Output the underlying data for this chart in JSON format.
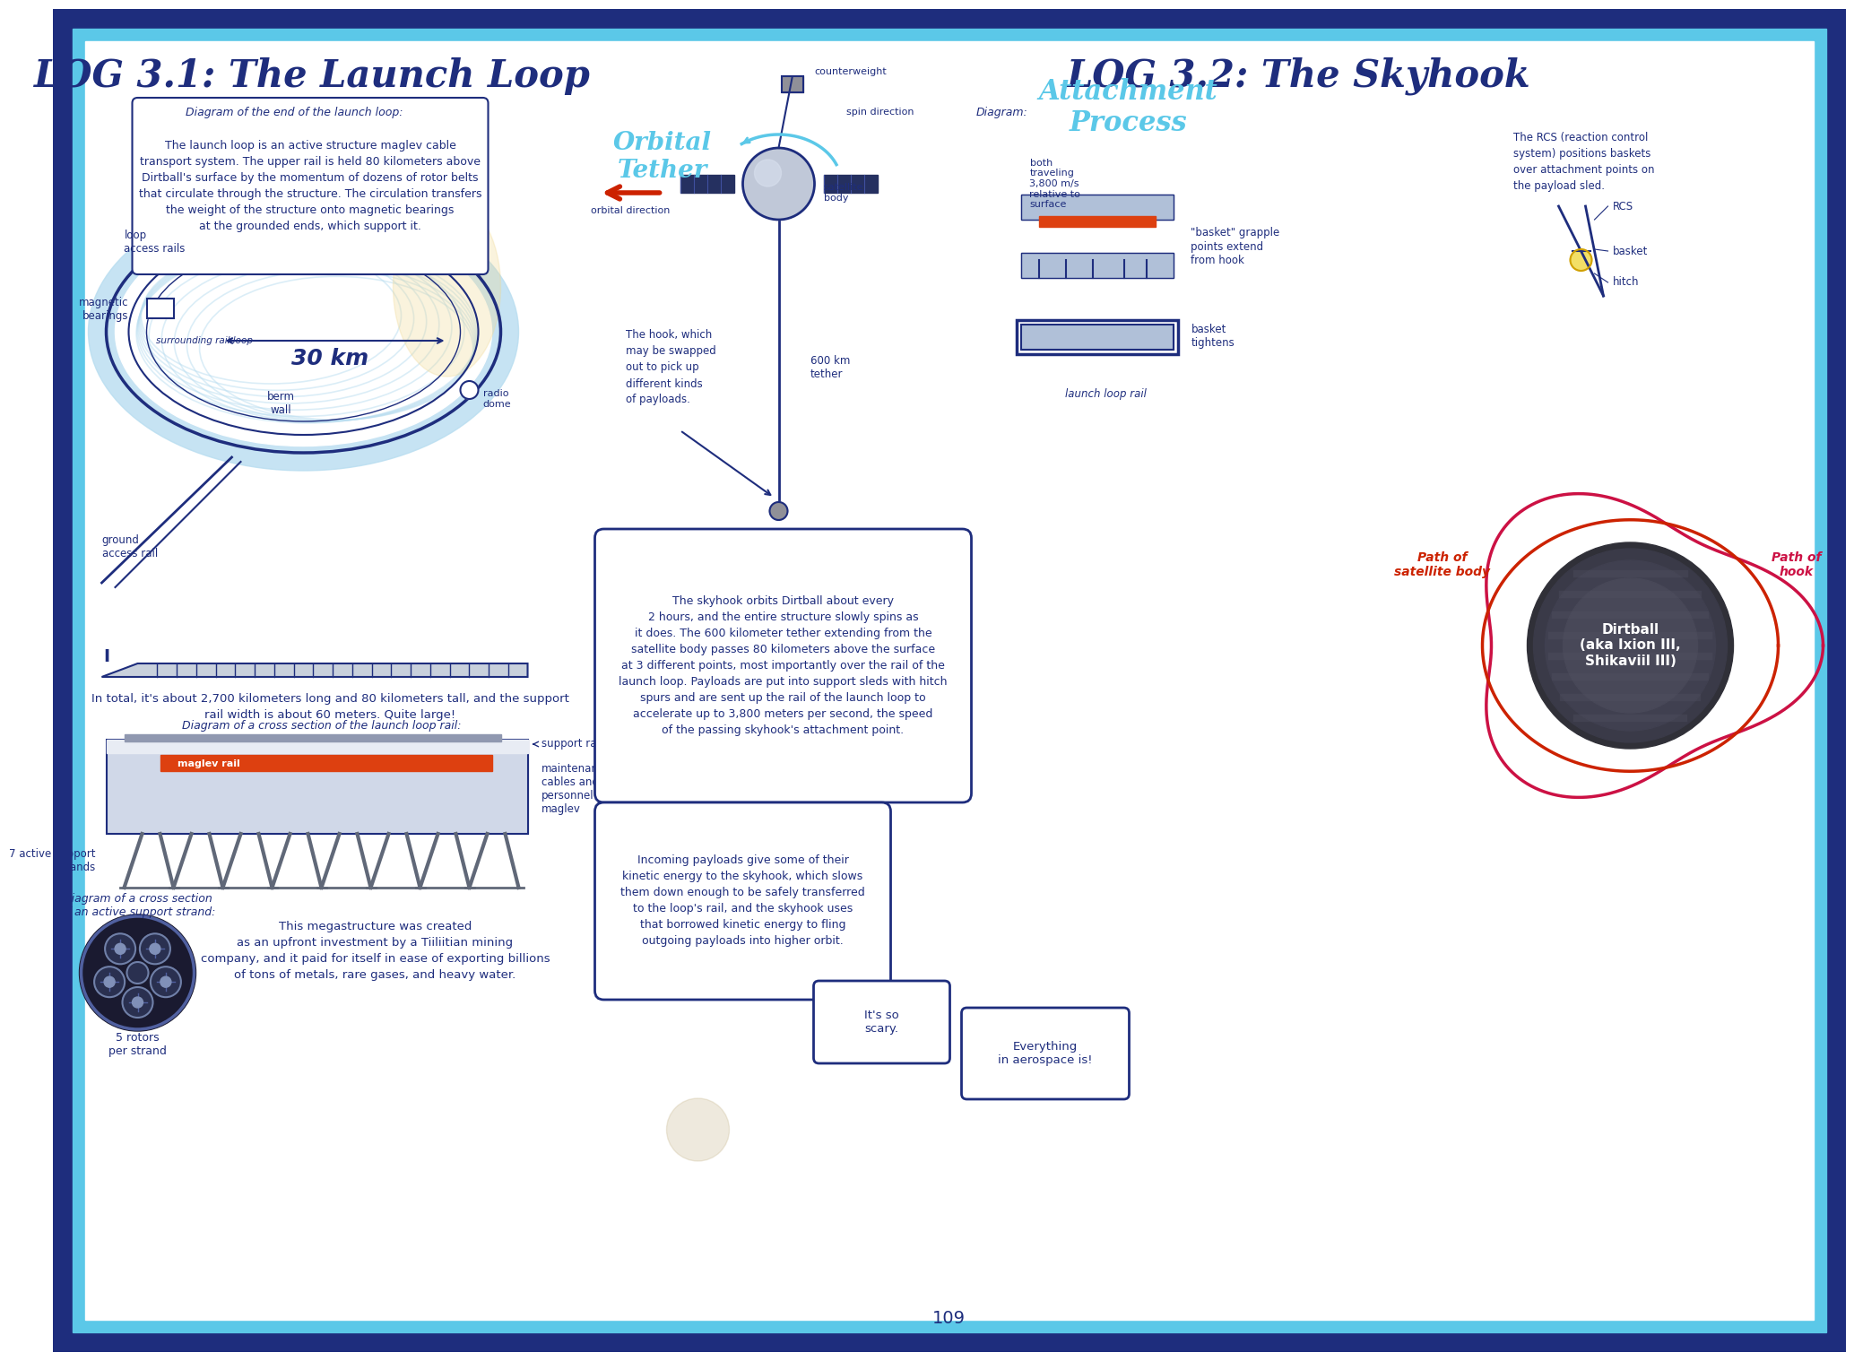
{
  "bg_outer": "#1e2d7d",
  "bg_border": "#5bc8e8",
  "bg_inner": "#ffffff",
  "title_color": "#1e2d7d",
  "title_left": "LOG 3.1: The Launch Loop",
  "title_right": "LOG 3.2: The Skyhook",
  "page_number": "109",
  "launch_loop_desc": "The launch loop is an active structure maglev cable\ntransport system. The upper rail is held 80 kilometers above\nDirtball's surface by the momentum of dozens of rotor belts\nthat circulate through the structure. The circulation transfers\nthe weight of the structure onto magnetic bearings\nat the grounded ends, which support it.",
  "size_desc": "In total, it's about 2,700 kilometers long and 80 kilometers tall, and the support\nrail width is about 60 meters. Quite large!",
  "mining_desc": "This megastructure was created\nas an upfront investment by a Tiiliitian mining\ncompany, and it paid for itself in ease of exporting billions\nof tons of metals, rare gases, and heavy water.",
  "rcs_desc": "The RCS (reaction control\nsystem) positions baskets\nover attachment points on\nthe payload sled.",
  "attachment_desc": "both\ntraveling\n3,800 m/s\nrelative to\nsurface",
  "hook_desc": "The hook, which\nmay be swapped\nout to pick up\ndifferent kinds\nof payloads.",
  "dirtball_desc": "Dirtball\n(aka Ixion III,\nShikaviil III)",
  "path_satellite": "Path of\nsatellite body",
  "path_hook": "Path of\nhook",
  "skyhook_text": "The skyhook orbits Dirtball about every\n2 hours, and the entire structure slowly spins as\nit does. The 600 kilometer tether extending from the\nsatellite body passes 80 kilometers above the surface\nat 3 different points, most importantly over the rail of the\nlaunch loop. Payloads are put into support sleds with hitch\nspurs and are sent up the rail of the launch loop to\naccelerate up to 3,800 meters per second, the speed\nof the passing skyhook's attachment point.",
  "kinetic_text": "Incoming payloads give some of their\nkinetic energy to the skyhook, which slows\nthem down enough to be safely transferred\nto the loop's rail, and the skyhook uses\nthat borrowed kinetic energy to fling\noutgoing payloads into higher orbit.",
  "scary_text": "It's so\nscary.",
  "aerospace_text": "Everything\nin aerospace is!",
  "accent_cyan": "#5bc8e8",
  "accent_blue": "#1e2d7d",
  "accent_red": "#cc2200",
  "accent_pink": "#cc1144",
  "light_blue": "#b8ddf0",
  "mid_blue": "#7ab8d8",
  "dark_gray": "#404048",
  "med_gray": "#606878",
  "light_gray": "#c8d0dc"
}
